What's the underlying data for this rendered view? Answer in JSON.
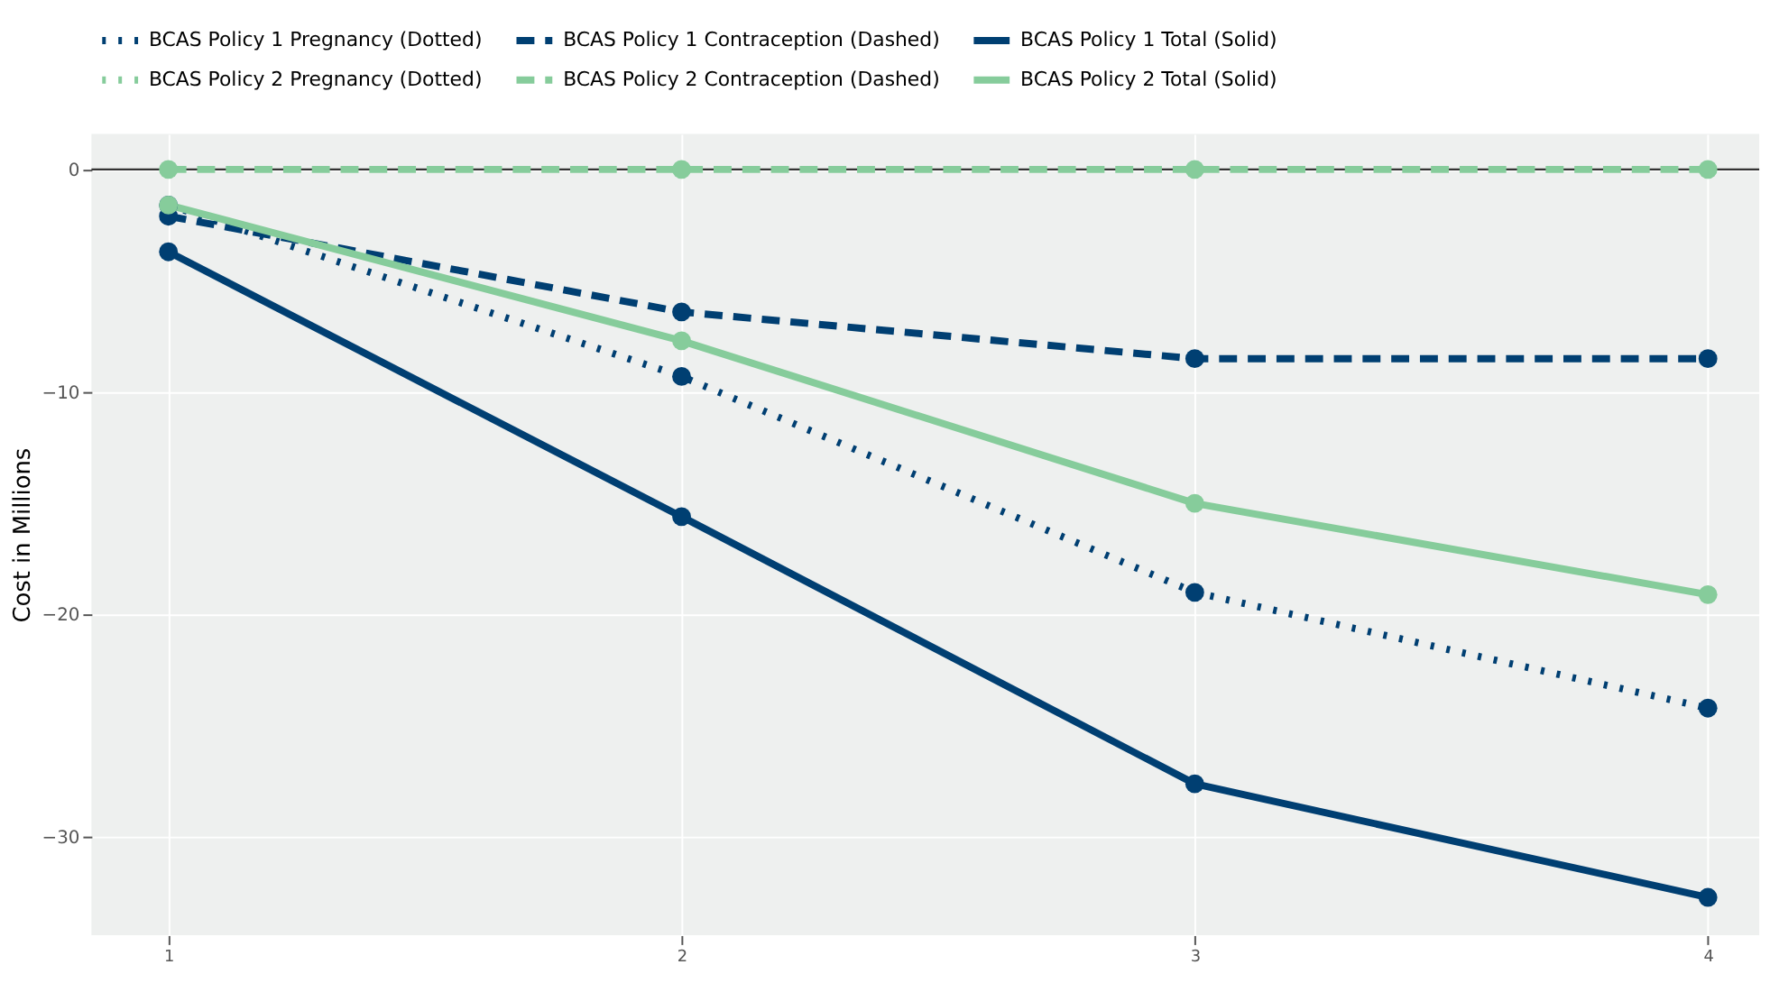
{
  "chart_data": {
    "type": "line",
    "ylabel": "Cost in Millions",
    "x": [
      1,
      2,
      3,
      4
    ],
    "series": [
      {
        "name": "BCAS Policy 1 Pregnancy (Dotted)",
        "color": "#003f72",
        "line_style": "dotted",
        "values": [
          -1.6,
          -9.3,
          -19.0,
          -24.2
        ]
      },
      {
        "name": "BCAS Policy 1 Contraception (Dashed)",
        "color": "#003f72",
        "line_style": "dashed",
        "values": [
          -2.1,
          -6.4,
          -8.5,
          -8.5
        ]
      },
      {
        "name": "BCAS Policy 1 Total (Solid)",
        "color": "#003f72",
        "line_style": "solid",
        "values": [
          -3.7,
          -15.6,
          -27.6,
          -32.7
        ]
      },
      {
        "name": "BCAS Policy 2 Pregnancy (Dotted)",
        "color": "#86cc9b",
        "line_style": "dotted",
        "values": [
          null,
          null,
          null,
          null
        ]
      },
      {
        "name": "BCAS Policy 2 Contraception (Dashed)",
        "color": "#86cc9b",
        "line_style": "dashed",
        "values": [
          0,
          0,
          0,
          0
        ]
      },
      {
        "name": "BCAS Policy 2 Total (Solid)",
        "color": "#86cc9b",
        "line_style": "solid",
        "values": [
          -1.6,
          -7.7,
          -15.0,
          -19.1
        ]
      }
    ],
    "xlim": [
      0.85,
      4.1
    ],
    "xticks": [
      1,
      2,
      3,
      4
    ],
    "ylim": [
      -34.4,
      1.6
    ],
    "yticks": [
      0,
      -10,
      -20,
      -30
    ],
    "ref_lines": [
      {
        "axis": "y",
        "value": 0,
        "color": "#333333"
      }
    ],
    "grid": true,
    "legend": "top",
    "marker": "circle"
  }
}
